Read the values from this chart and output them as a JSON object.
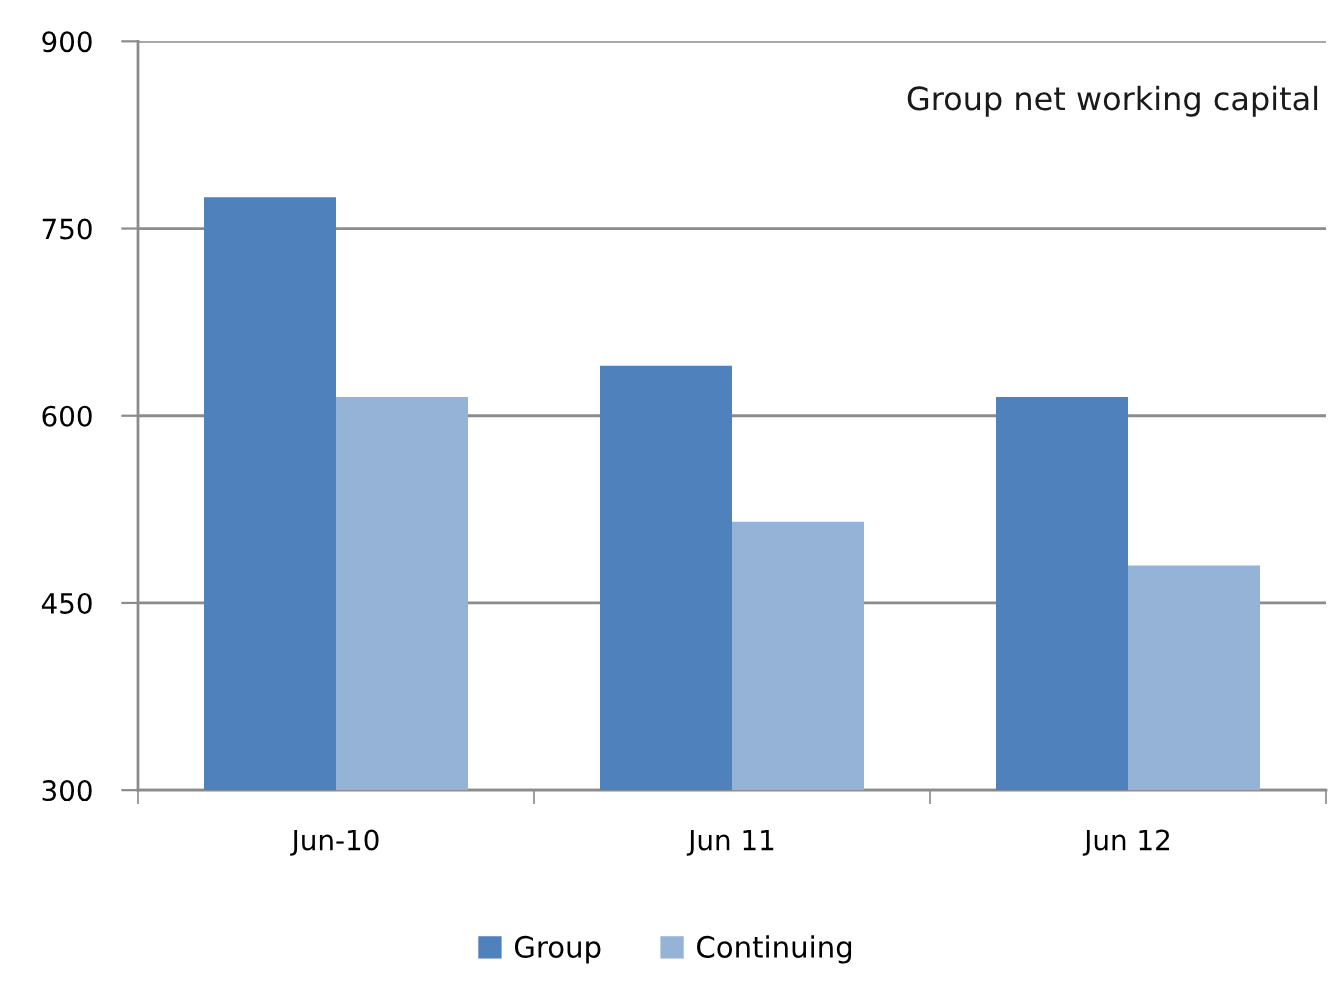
{
  "chart_data": {
    "type": "bar",
    "title": "Group net working capital",
    "categories": [
      "Jun-10",
      "Jun 11",
      "Jun 12"
    ],
    "series": [
      {
        "name": "Group",
        "color": "#4f81bd",
        "values": [
          775,
          640,
          615
        ]
      },
      {
        "name": "Continuing",
        "color": "#95b3d7",
        "values": [
          615,
          515,
          480
        ]
      }
    ],
    "ylim": [
      300,
      900
    ],
    "yticks": [
      300,
      450,
      600,
      750,
      900
    ],
    "grid": "y",
    "legend": "bottom"
  }
}
